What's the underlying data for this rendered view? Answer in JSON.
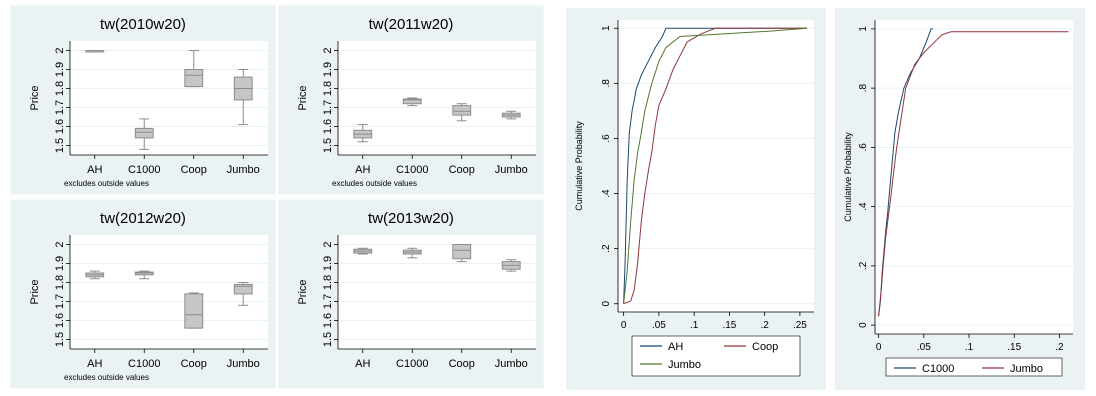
{
  "chart_data": [
    {
      "type": "box",
      "title": "tw(2010w20)",
      "ylabel": "Price",
      "note": "excludes outside values",
      "categories": [
        "AH",
        "C1000",
        "Coop",
        "Jumbo"
      ],
      "yticks": [
        "1.5",
        "1.6",
        "1.7",
        "1.8",
        "1.9",
        "2"
      ],
      "ylim": [
        1.45,
        2.05
      ],
      "boxes": [
        {
          "min": 2.0,
          "q1": 2.0,
          "median": 2.0,
          "q3": 2.0,
          "max": 2.0
        },
        {
          "min": 1.48,
          "q1": 1.54,
          "median": 1.57,
          "q3": 1.59,
          "max": 1.64
        },
        {
          "min": 1.81,
          "q1": 1.81,
          "median": 1.87,
          "q3": 1.9,
          "max": 2.0
        },
        {
          "min": 1.61,
          "q1": 1.74,
          "median": 1.8,
          "q3": 1.86,
          "max": 1.9
        }
      ]
    },
    {
      "type": "box",
      "title": "tw(2011w20)",
      "ylabel": "Price",
      "note": "excludes outside values",
      "categories": [
        "AH",
        "C1000",
        "Coop",
        "Jumbo"
      ],
      "yticks": [
        "1.5",
        "1.6",
        "1.7",
        "1.8",
        "1.9",
        "2"
      ],
      "ylim": [
        1.45,
        2.05
      ],
      "boxes": [
        {
          "min": 1.52,
          "q1": 1.54,
          "median": 1.56,
          "q3": 1.58,
          "max": 1.61
        },
        {
          "min": 1.71,
          "q1": 1.72,
          "median": 1.74,
          "q3": 1.745,
          "max": 1.75
        },
        {
          "min": 1.63,
          "q1": 1.66,
          "median": 1.68,
          "q3": 1.71,
          "max": 1.72
        },
        {
          "min": 1.64,
          "q1": 1.65,
          "median": 1.66,
          "q3": 1.67,
          "max": 1.68
        }
      ]
    },
    {
      "type": "box",
      "title": "tw(2012w20)",
      "ylabel": "Price",
      "note": "excludes outside values",
      "categories": [
        "AH",
        "C1000",
        "Coop",
        "Jumbo"
      ],
      "yticks": [
        "1.5",
        "1.6",
        "1.7",
        "1.8",
        "1.9",
        "2"
      ],
      "ylim": [
        1.45,
        2.05
      ],
      "boxes": [
        {
          "min": 1.82,
          "q1": 1.83,
          "median": 1.84,
          "q3": 1.85,
          "max": 1.86
        },
        {
          "min": 1.82,
          "q1": 1.84,
          "median": 1.85,
          "q3": 1.855,
          "max": 1.86
        },
        {
          "min": 1.56,
          "q1": 1.56,
          "median": 1.63,
          "q3": 1.74,
          "max": 1.745
        },
        {
          "min": 1.68,
          "q1": 1.74,
          "median": 1.78,
          "q3": 1.79,
          "max": 1.8
        }
      ]
    },
    {
      "type": "box",
      "title": "tw(2013w20)",
      "ylabel": "Price",
      "note": "",
      "categories": [
        "AH",
        "C1000",
        "Coop",
        "Jumbo"
      ],
      "yticks": [
        "1.5",
        "1.6",
        "1.7",
        "1.8",
        "1.9",
        "2"
      ],
      "ylim": [
        1.45,
        2.05
      ],
      "boxes": [
        {
          "min": 1.95,
          "q1": 1.955,
          "median": 1.965,
          "q3": 1.975,
          "max": 1.98
        },
        {
          "min": 1.93,
          "q1": 1.95,
          "median": 1.96,
          "q3": 1.97,
          "max": 1.98
        },
        {
          "min": 1.91,
          "q1": 1.925,
          "median": 1.97,
          "q3": 2.0,
          "max": 2.0
        },
        {
          "min": 1.86,
          "q1": 1.87,
          "median": 1.89,
          "q3": 1.91,
          "max": 1.92
        }
      ]
    },
    {
      "type": "line",
      "title": "",
      "xlabel": "",
      "ylabel": "Cumulative Probability",
      "xlim": [
        -0.008,
        0.27
      ],
      "ylim": [
        -0.03,
        1.03
      ],
      "xticks": [
        {
          "v": 0,
          "t": "0"
        },
        {
          "v": 0.05,
          "t": ".05"
        },
        {
          "v": 0.1,
          "t": ".1"
        },
        {
          "v": 0.15,
          "t": ".15"
        },
        {
          "v": 0.2,
          "t": ".2"
        },
        {
          "v": 0.25,
          "t": ".25"
        }
      ],
      "yticks": [
        {
          "v": 0,
          "t": "0"
        },
        {
          "v": 0.2,
          "t": ".2"
        },
        {
          "v": 0.4,
          "t": ".4"
        },
        {
          "v": 0.6,
          "t": ".6"
        },
        {
          "v": 0.8,
          "t": ".8"
        },
        {
          "v": 1,
          "t": "1"
        }
      ],
      "legend": [
        "AH",
        "Coop",
        "Jumbo"
      ],
      "series": [
        {
          "name": "AH",
          "color": "#1a476f",
          "points": [
            [
              0,
              0
            ],
            [
              0.002,
              0.15
            ],
            [
              0.005,
              0.45
            ],
            [
              0.008,
              0.62
            ],
            [
              0.012,
              0.7
            ],
            [
              0.018,
              0.78
            ],
            [
              0.025,
              0.83
            ],
            [
              0.035,
              0.88
            ],
            [
              0.045,
              0.93
            ],
            [
              0.055,
              0.97
            ],
            [
              0.06,
              1
            ],
            [
              0.26,
              1
            ]
          ]
        },
        {
          "name": "Coop",
          "color": "#90353b",
          "points": [
            [
              0,
              0
            ],
            [
              0.01,
              0.01
            ],
            [
              0.015,
              0.05
            ],
            [
              0.02,
              0.15
            ],
            [
              0.025,
              0.3
            ],
            [
              0.03,
              0.4
            ],
            [
              0.035,
              0.48
            ],
            [
              0.04,
              0.55
            ],
            [
              0.045,
              0.65
            ],
            [
              0.05,
              0.72
            ],
            [
              0.06,
              0.78
            ],
            [
              0.07,
              0.85
            ],
            [
              0.08,
              0.9
            ],
            [
              0.09,
              0.95
            ],
            [
              0.11,
              0.98
            ],
            [
              0.13,
              1
            ],
            [
              0.26,
              1
            ]
          ]
        },
        {
          "name": "Jumbo",
          "color": "#55752f",
          "points": [
            [
              0,
              0
            ],
            [
              0.005,
              0.12
            ],
            [
              0.01,
              0.3
            ],
            [
              0.015,
              0.45
            ],
            [
              0.02,
              0.55
            ],
            [
              0.025,
              0.62
            ],
            [
              0.03,
              0.7
            ],
            [
              0.04,
              0.8
            ],
            [
              0.05,
              0.88
            ],
            [
              0.06,
              0.93
            ],
            [
              0.08,
              0.97
            ],
            [
              0.21,
              0.99
            ],
            [
              0.26,
              1
            ]
          ]
        }
      ]
    },
    {
      "type": "line",
      "title": "",
      "xlabel": "",
      "ylabel": "Cumulative Probability",
      "xlim": [
        -0.004,
        0.215
      ],
      "ylim": [
        -0.03,
        1.03
      ],
      "xticks": [
        {
          "v": 0,
          "t": "0"
        },
        {
          "v": 0.05,
          "t": ".05"
        },
        {
          "v": 0.1,
          "t": ".1"
        },
        {
          "v": 0.15,
          "t": ".15"
        },
        {
          "v": 0.2,
          "t": ".2"
        }
      ],
      "yticks": [
        {
          "v": 0,
          "t": "0"
        },
        {
          "v": 0.2,
          "t": ".2"
        },
        {
          "v": 0.4,
          "t": ".4"
        },
        {
          "v": 0.6,
          "t": ".6"
        },
        {
          "v": 0.8,
          "t": ".8"
        },
        {
          "v": 1,
          "t": "1"
        }
      ],
      "legend": [
        "C1000",
        "Jumbo"
      ],
      "series": [
        {
          "name": "C1000",
          "color": "#1a476f",
          "points": [
            [
              0,
              0.03
            ],
            [
              0.002,
              0.08
            ],
            [
              0.004,
              0.18
            ],
            [
              0.006,
              0.25
            ],
            [
              0.008,
              0.32
            ],
            [
              0.01,
              0.38
            ],
            [
              0.012,
              0.45
            ],
            [
              0.015,
              0.55
            ],
            [
              0.018,
              0.65
            ],
            [
              0.022,
              0.72
            ],
            [
              0.028,
              0.8
            ],
            [
              0.035,
              0.85
            ],
            [
              0.045,
              0.9
            ],
            [
              0.052,
              0.95
            ],
            [
              0.058,
              1
            ],
            [
              0.06,
              1
            ]
          ]
        },
        {
          "name": "Jumbo",
          "color": "#90353b",
          "points": [
            [
              0,
              0.03
            ],
            [
              0.003,
              0.12
            ],
            [
              0.005,
              0.2
            ],
            [
              0.008,
              0.3
            ],
            [
              0.01,
              0.35
            ],
            [
              0.013,
              0.42
            ],
            [
              0.016,
              0.5
            ],
            [
              0.02,
              0.6
            ],
            [
              0.025,
              0.7
            ],
            [
              0.03,
              0.8
            ],
            [
              0.04,
              0.88
            ],
            [
              0.05,
              0.92
            ],
            [
              0.06,
              0.95
            ],
            [
              0.07,
              0.98
            ],
            [
              0.08,
              0.99
            ],
            [
              0.21,
              0.99
            ]
          ]
        }
      ]
    }
  ]
}
